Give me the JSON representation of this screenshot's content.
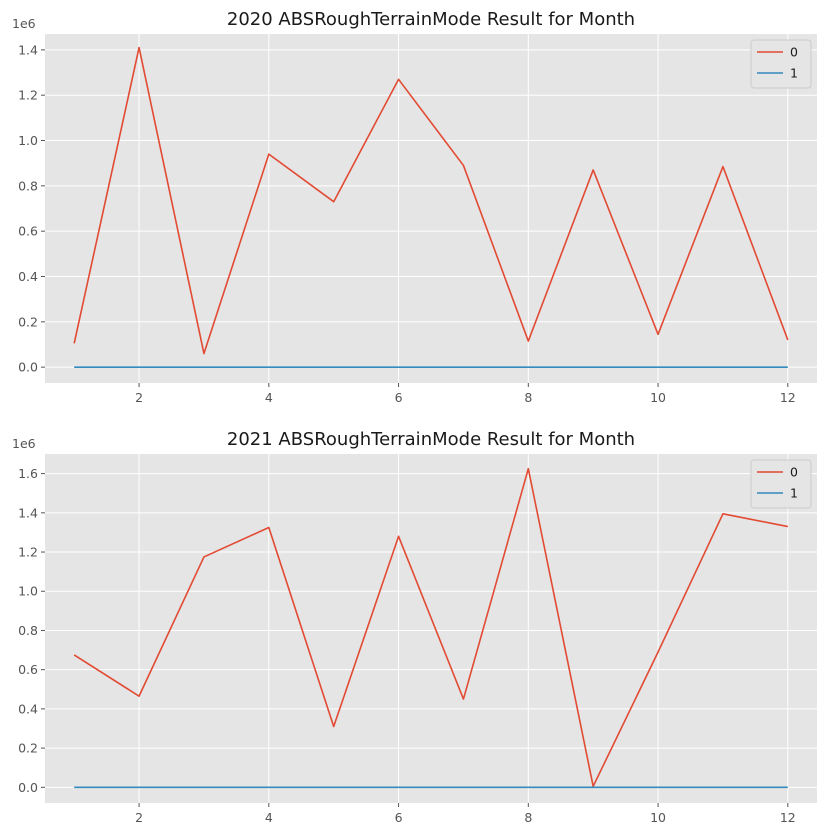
{
  "chart_data": [
    {
      "type": "line",
      "title": "2020 ABSRoughTerrainMode Result for Month",
      "xlabel": "",
      "ylabel": "",
      "y_scale_label": "1e6",
      "xlim": [
        0.55,
        12.45
      ],
      "ylim": [
        -70000,
        1470000
      ],
      "x_ticks": [
        2,
        4,
        6,
        8,
        10,
        12
      ],
      "y_ticks": [
        0,
        0.2,
        0.4,
        0.6,
        0.8,
        1.0,
        1.2,
        1.4
      ],
      "y_tick_labels": [
        "0.0",
        "0.2",
        "0.4",
        "0.6",
        "0.8",
        "1.0",
        "1.2",
        "1.4"
      ],
      "grid": true,
      "legend_position": "top-right",
      "x": [
        1,
        2,
        3,
        4,
        5,
        6,
        7,
        8,
        9,
        10,
        11,
        12
      ],
      "series": [
        {
          "name": "0",
          "color": "#E24A33",
          "values": [
            105000,
            1410000,
            60000,
            940000,
            730000,
            1270000,
            890000,
            115000,
            870000,
            145000,
            885000,
            120000
          ]
        },
        {
          "name": "1",
          "color": "#348ABD",
          "values": [
            0,
            0,
            0,
            0,
            0,
            0,
            0,
            0,
            0,
            0,
            0,
            0
          ]
        }
      ]
    },
    {
      "type": "line",
      "title": "2021 ABSRoughTerrainMode Result for Month",
      "xlabel": "",
      "ylabel": "",
      "y_scale_label": "1e6",
      "xlim": [
        0.55,
        12.45
      ],
      "ylim": [
        -80000,
        1700000
      ],
      "x_ticks": [
        2,
        4,
        6,
        8,
        10,
        12
      ],
      "y_ticks": [
        0,
        0.2,
        0.4,
        0.6,
        0.8,
        1.0,
        1.2,
        1.4,
        1.6
      ],
      "y_tick_labels": [
        "0.0",
        "0.2",
        "0.4",
        "0.6",
        "0.8",
        "1.0",
        "1.2",
        "1.4",
        "1.6"
      ],
      "grid": true,
      "legend_position": "top-right",
      "x": [
        1,
        2,
        3,
        4,
        5,
        6,
        7,
        8,
        9,
        10,
        11,
        12
      ],
      "series": [
        {
          "name": "0",
          "color": "#E24A33",
          "values": [
            675000,
            465000,
            1175000,
            1325000,
            310000,
            1280000,
            450000,
            1625000,
            5000,
            690000,
            1395000,
            1330000
          ]
        },
        {
          "name": "1",
          "color": "#348ABD",
          "values": [
            0,
            0,
            0,
            0,
            0,
            0,
            0,
            0,
            0,
            0,
            0,
            0
          ]
        }
      ]
    }
  ]
}
